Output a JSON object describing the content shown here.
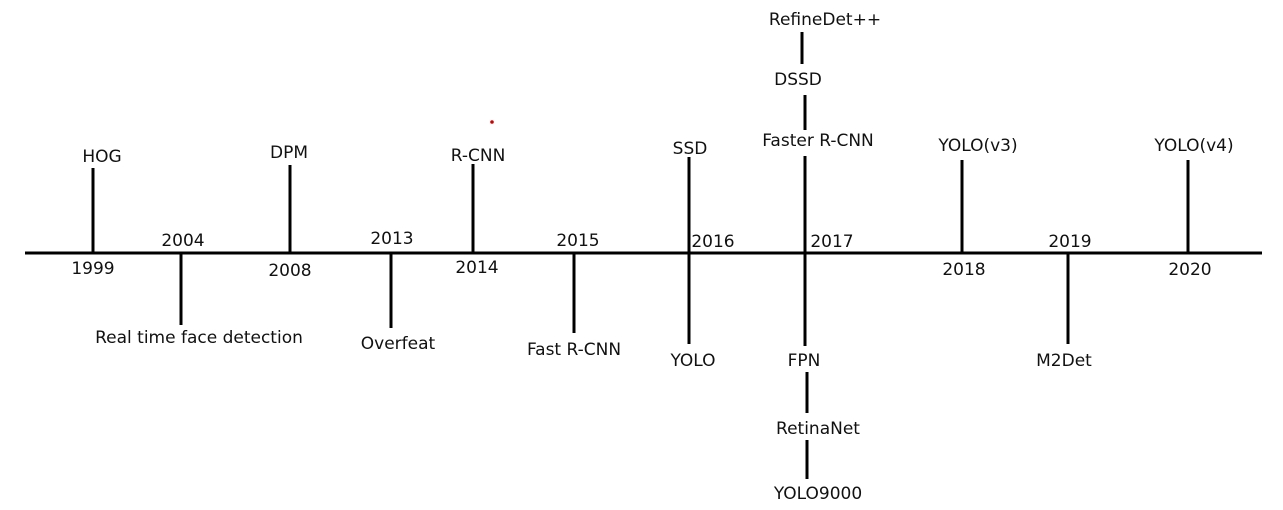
{
  "timeline": {
    "events": [
      {
        "year": "1999",
        "label": "HOG"
      },
      {
        "year": "2004",
        "label": "Real time face detection"
      },
      {
        "year": "2008",
        "label": "DPM"
      },
      {
        "year": "2013",
        "label": "Overfeat"
      },
      {
        "year": "2014",
        "label": "R-CNN"
      },
      {
        "year": "2015",
        "label": "Fast R-CNN"
      },
      {
        "year": "2016",
        "label": "SSD",
        "label2": "YOLO"
      },
      {
        "year": "2017",
        "up": [
          "Faster R-CNN",
          "DSSD",
          "RefineDet++"
        ],
        "down": [
          "FPN",
          "RetinaNet",
          "YOLO9000"
        ]
      },
      {
        "year": "2018",
        "label": "YOLO(v3)"
      },
      {
        "year": "2019",
        "label": "M2Det"
      },
      {
        "year": "2020",
        "label": "YOLO(v4)"
      }
    ],
    "colors": {
      "line": "#000000",
      "text": "#111111",
      "dot": "#cc0000"
    }
  }
}
